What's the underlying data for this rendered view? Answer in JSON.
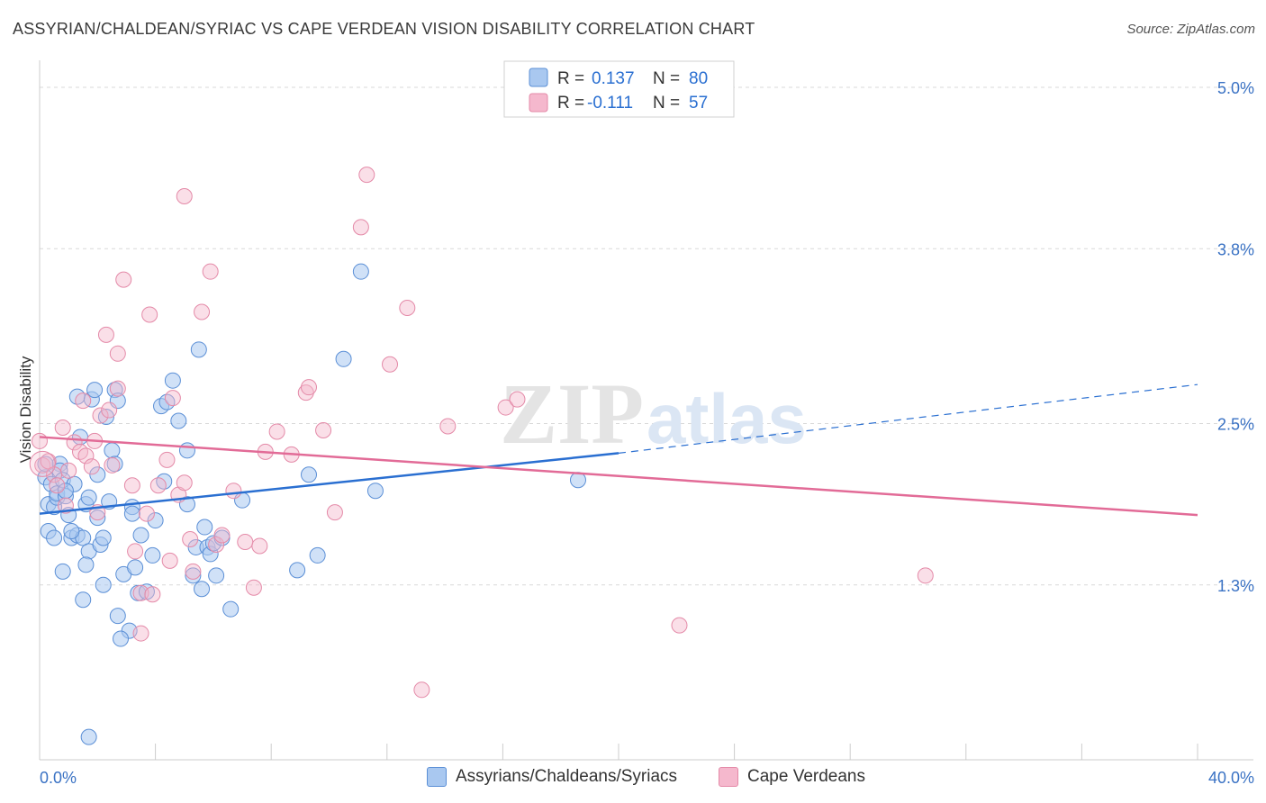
{
  "header": {
    "title": "ASSYRIAN/CHALDEAN/SYRIAC VS CAPE VERDEAN VISION DISABILITY CORRELATION CHART",
    "source": "Source: ZipAtlas.com"
  },
  "chart_data": {
    "type": "scatter",
    "title": "ASSYRIAN/CHALDEAN/SYRIAC VS CAPE VERDEAN VISION DISABILITY CORRELATION CHART",
    "xlabel": "",
    "ylabel": "Vision Disability",
    "xlim": [
      0,
      40
    ],
    "ylim": [
      0,
      5.2
    ],
    "x_tick_labels": [
      {
        "value": 0,
        "label": "0.0%"
      },
      {
        "value": 40,
        "label": "40.0%"
      }
    ],
    "y_tick_labels": [
      {
        "value": 1.3,
        "label": "1.3%"
      },
      {
        "value": 2.5,
        "label": "2.5%"
      },
      {
        "value": 3.8,
        "label": "3.8%"
      },
      {
        "value": 5.0,
        "label": "5.0%"
      }
    ],
    "watermark": {
      "part1": "ZIP",
      "part2": "atlas"
    },
    "colors": {
      "series1_fill": "#a9c8f0",
      "series1_stroke": "#5b8fd6",
      "series1_line": "#2a6fd1",
      "series2_fill": "#f5b8cd",
      "series2_stroke": "#e48aa8",
      "series2_line": "#e26b97",
      "tick_label": "#3a72c4",
      "grid": "#d9d9d9"
    },
    "legend": {
      "r_label": "R =",
      "n_label": "N =",
      "entries": [
        {
          "r": "0.137",
          "n": "80"
        },
        {
          "r": "-0.111",
          "n": "57"
        }
      ]
    },
    "series": [
      {
        "name": "Assyrians/Chaldeans/Syriacs",
        "r": 0.137,
        "n": 80,
        "trend": {
          "x0": 0,
          "y0": 1.83,
          "x1": 20,
          "y1": 2.28,
          "x_end": 40,
          "y_end": 2.79
        },
        "points": [
          [
            0.2,
            2.1
          ],
          [
            0.3,
            1.9
          ],
          [
            0.4,
            2.05
          ],
          [
            0.5,
            1.88
          ],
          [
            0.6,
            1.95
          ],
          [
            0.7,
            2.2
          ],
          [
            0.3,
            1.7
          ],
          [
            0.5,
            1.65
          ],
          [
            0.6,
            1.98
          ],
          [
            0.7,
            2.15
          ],
          [
            0.8,
            2.08
          ],
          [
            0.9,
            1.96
          ],
          [
            0.8,
            1.4
          ],
          [
            1.0,
            1.82
          ],
          [
            1.1,
            1.65
          ],
          [
            1.2,
            2.05
          ],
          [
            1.3,
            1.67
          ],
          [
            1.4,
            2.4
          ],
          [
            1.3,
            2.7
          ],
          [
            1.5,
            1.65
          ],
          [
            1.6,
            1.9
          ],
          [
            1.7,
            1.95
          ],
          [
            1.7,
            1.55
          ],
          [
            1.8,
            2.68
          ],
          [
            1.9,
            2.75
          ],
          [
            2.0,
            2.12
          ],
          [
            2.0,
            1.8
          ],
          [
            2.1,
            1.6
          ],
          [
            2.2,
            1.65
          ],
          [
            2.3,
            2.55
          ],
          [
            2.4,
            1.92
          ],
          [
            2.5,
            2.3
          ],
          [
            2.6,
            2.2
          ],
          [
            2.6,
            2.75
          ],
          [
            2.7,
            2.67
          ],
          [
            1.5,
            1.19
          ],
          [
            1.6,
            1.45
          ],
          [
            2.2,
            1.3
          ],
          [
            2.7,
            1.07
          ],
          [
            2.9,
            1.38
          ],
          [
            3.1,
            0.96
          ],
          [
            2.8,
            0.9
          ],
          [
            3.2,
            1.88
          ],
          [
            3.2,
            1.83
          ],
          [
            3.3,
            1.43
          ],
          [
            3.4,
            1.24
          ],
          [
            3.5,
            1.67
          ],
          [
            3.7,
            1.25
          ],
          [
            3.9,
            1.52
          ],
          [
            4.0,
            1.78
          ],
          [
            4.2,
            2.63
          ],
          [
            4.3,
            2.07
          ],
          [
            4.4,
            2.66
          ],
          [
            4.6,
            2.82
          ],
          [
            4.8,
            2.52
          ],
          [
            5.1,
            1.9
          ],
          [
            5.1,
            2.3
          ],
          [
            5.3,
            1.37
          ],
          [
            5.4,
            1.58
          ],
          [
            5.5,
            3.05
          ],
          [
            5.6,
            1.27
          ],
          [
            5.7,
            1.73
          ],
          [
            5.8,
            1.58
          ],
          [
            5.9,
            1.53
          ],
          [
            6.0,
            1.61
          ],
          [
            6.1,
            1.37
          ],
          [
            6.3,
            1.65
          ],
          [
            6.6,
            1.12
          ],
          [
            7.0,
            1.93
          ],
          [
            8.9,
            1.41
          ],
          [
            9.3,
            2.12
          ],
          [
            9.6,
            1.52
          ],
          [
            10.5,
            2.98
          ],
          [
            11.1,
            3.63
          ],
          [
            11.6,
            2.0
          ],
          [
            18.6,
            2.08
          ],
          [
            1.7,
            0.17
          ],
          [
            0.2,
            2.2
          ],
          [
            0.9,
            2.0
          ],
          [
            1.1,
            1.7
          ]
        ]
      },
      {
        "name": "Cape Verdeans",
        "r": -0.111,
        "n": 57,
        "trend": {
          "x0": 0,
          "y0": 2.4,
          "x1": 40,
          "y1": 1.82
        },
        "points": [
          [
            0.0,
            2.37
          ],
          [
            0.1,
            2.19
          ],
          [
            0.3,
            2.22
          ],
          [
            0.5,
            2.12
          ],
          [
            0.6,
            2.04
          ],
          [
            0.8,
            2.47
          ],
          [
            0.9,
            1.89
          ],
          [
            1.0,
            2.15
          ],
          [
            1.2,
            2.36
          ],
          [
            1.4,
            2.29
          ],
          [
            1.5,
            2.67
          ],
          [
            1.6,
            2.26
          ],
          [
            1.8,
            2.18
          ],
          [
            1.9,
            2.37
          ],
          [
            2.0,
            1.84
          ],
          [
            2.1,
            2.56
          ],
          [
            2.3,
            3.16
          ],
          [
            2.4,
            2.6
          ],
          [
            2.5,
            2.19
          ],
          [
            2.7,
            2.76
          ],
          [
            2.7,
            3.02
          ],
          [
            2.9,
            3.57
          ],
          [
            3.2,
            2.04
          ],
          [
            3.3,
            1.55
          ],
          [
            3.5,
            0.94
          ],
          [
            3.5,
            1.24
          ],
          [
            3.7,
            1.83
          ],
          [
            3.8,
            3.31
          ],
          [
            3.9,
            1.23
          ],
          [
            4.1,
            2.04
          ],
          [
            4.4,
            2.23
          ],
          [
            4.5,
            1.48
          ],
          [
            4.6,
            2.69
          ],
          [
            4.8,
            1.97
          ],
          [
            5.0,
            2.06
          ],
          [
            5.0,
            4.19
          ],
          [
            5.2,
            1.64
          ],
          [
            5.3,
            1.4
          ],
          [
            5.6,
            3.33
          ],
          [
            5.9,
            3.63
          ],
          [
            6.1,
            1.6
          ],
          [
            6.3,
            1.67
          ],
          [
            6.7,
            2.0
          ],
          [
            7.1,
            1.62
          ],
          [
            7.4,
            1.28
          ],
          [
            7.6,
            1.59
          ],
          [
            7.8,
            2.29
          ],
          [
            8.2,
            2.44
          ],
          [
            8.7,
            2.27
          ],
          [
            9.2,
            2.73
          ],
          [
            9.3,
            2.77
          ],
          [
            9.8,
            2.45
          ],
          [
            10.2,
            1.84
          ],
          [
            11.1,
            3.96
          ],
          [
            12.1,
            2.94
          ],
          [
            12.7,
            3.36
          ],
          [
            13.2,
            0.52
          ]
        ],
        "extra_points": [
          [
            14.1,
            2.48
          ],
          [
            16.1,
            2.62
          ],
          [
            16.5,
            2.68
          ],
          [
            22.1,
            1.0
          ],
          [
            30.6,
            1.37
          ],
          [
            11.3,
            4.35
          ]
        ]
      }
    ]
  },
  "legend_bottom": {
    "items": [
      {
        "label": "Assyrians/Chaldeans/Syriacs"
      },
      {
        "label": "Cape Verdeans"
      }
    ]
  }
}
